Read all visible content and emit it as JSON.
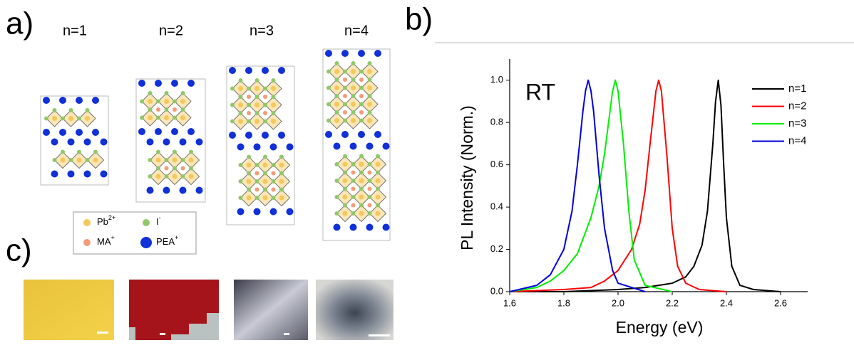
{
  "panel_a": {
    "label": "a)",
    "structures": [
      "n=1",
      "n=2",
      "n=3",
      "n=4"
    ],
    "legend": [
      {
        "label": "Pb",
        "sup": "2+"
      },
      {
        "label": "I",
        "sup": "-"
      },
      {
        "label": "MA",
        "sup": "+"
      },
      {
        "label": "PEA",
        "sup": "+"
      }
    ]
  },
  "panel_b": {
    "label": "b)"
  },
  "panel_c": {
    "label": "c)"
  },
  "chart_data": {
    "type": "line",
    "annotation": "RT",
    "xlabel": "Energy (eV)",
    "ylabel": "PL Intensity (Norm.)",
    "xlim": [
      1.6,
      2.7
    ],
    "ylim": [
      0,
      1.1
    ],
    "xticks": [
      1.6,
      1.8,
      {
        "value": 2,
        "label": "2.0"
      },
      2.2,
      2.4,
      2.6
    ],
    "yticks": [
      {
        "value": 0,
        "label": "0.0"
      },
      0.2,
      0.4,
      0.6,
      0.8,
      {
        "value": 1,
        "label": "1.0"
      }
    ],
    "legend": "upper right",
    "series": [
      {
        "name": "n=1",
        "color": "#000000",
        "x": [
          1.6,
          1.8,
          2.0,
          2.1,
          2.2,
          2.25,
          2.28,
          2.31,
          2.33,
          2.35,
          2.36,
          2.37,
          2.38,
          2.39,
          2.4,
          2.42,
          2.45,
          2.5,
          2.6
        ],
        "values": [
          0,
          0,
          0.01,
          0.02,
          0.04,
          0.07,
          0.12,
          0.22,
          0.38,
          0.7,
          0.9,
          1.0,
          0.88,
          0.6,
          0.35,
          0.12,
          0.03,
          0.01,
          0
        ]
      },
      {
        "name": "n=2",
        "color": "#ff0000",
        "x": [
          1.6,
          1.8,
          1.9,
          1.95,
          2.0,
          2.05,
          2.08,
          2.1,
          2.12,
          2.14,
          2.15,
          2.16,
          2.18,
          2.2,
          2.22,
          2.25,
          2.3,
          2.4
        ],
        "values": [
          0,
          0.01,
          0.02,
          0.05,
          0.1,
          0.2,
          0.32,
          0.48,
          0.72,
          0.95,
          1.0,
          0.95,
          0.65,
          0.3,
          0.12,
          0.04,
          0.01,
          0
        ]
      },
      {
        "name": "n=3",
        "color": "#00ee00",
        "x": [
          1.6,
          1.7,
          1.75,
          1.8,
          1.85,
          1.9,
          1.93,
          1.95,
          1.97,
          1.98,
          1.99,
          2.0,
          2.02,
          2.04,
          2.06,
          2.1,
          2.2
        ],
        "values": [
          0,
          0.02,
          0.05,
          0.1,
          0.18,
          0.35,
          0.5,
          0.65,
          0.85,
          0.95,
          1.0,
          0.95,
          0.7,
          0.38,
          0.15,
          0.03,
          0
        ]
      },
      {
        "name": "n=4",
        "color": "#0000dd",
        "x": [
          1.6,
          1.7,
          1.75,
          1.8,
          1.83,
          1.85,
          1.87,
          1.88,
          1.89,
          1.9,
          1.91,
          1.93,
          1.95,
          1.98,
          2.0,
          2.1
        ],
        "values": [
          0,
          0.03,
          0.08,
          0.2,
          0.38,
          0.6,
          0.85,
          0.95,
          1.0,
          0.95,
          0.85,
          0.55,
          0.3,
          0.1,
          0.04,
          0
        ]
      }
    ]
  }
}
